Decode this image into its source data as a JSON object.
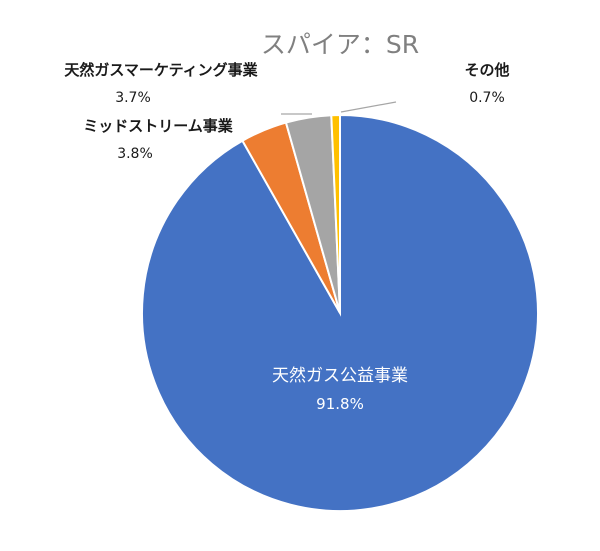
{
  "chart_data": {
    "type": "pie",
    "title": "スパイア：SR",
    "start_angle": "12 o'clock",
    "direction": "clockwise",
    "slices": [
      {
        "label": "天然ガス公益事業",
        "value": 91.8,
        "display": "91.8%",
        "color": "#4472C4"
      },
      {
        "label": "ミッドストリーム事業",
        "value": 3.8,
        "display": "3.8%",
        "color": "#ED7D31"
      },
      {
        "label": "天然ガスマーケティング事業",
        "value": 3.7,
        "display": "3.7%",
        "color": "#A5A5A5"
      },
      {
        "label": "その他",
        "value": 0.7,
        "display": "0.7%",
        "color": "#FFC000"
      }
    ]
  }
}
